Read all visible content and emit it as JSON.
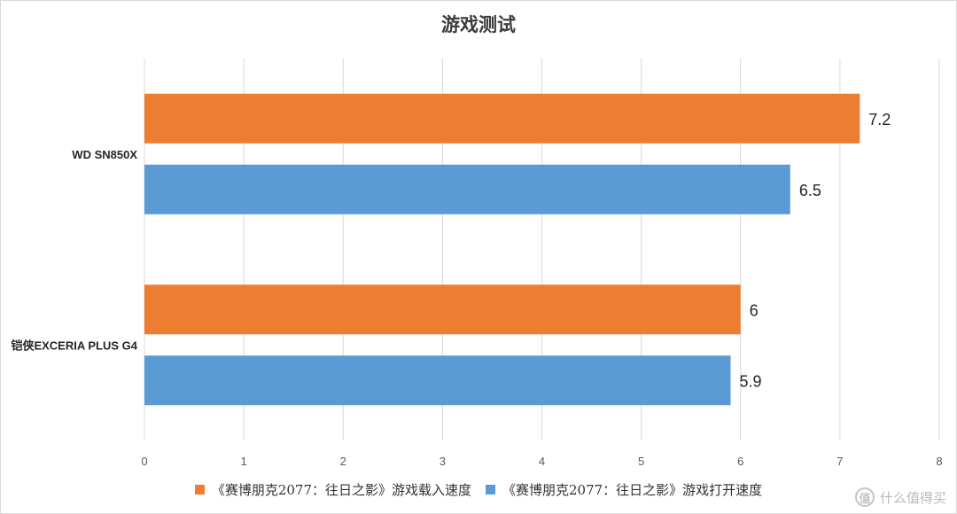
{
  "chart_data": {
    "type": "bar",
    "orientation": "horizontal",
    "title": "游戏测试",
    "categories": [
      "WD SN850X",
      "铠侠EXCERIA PLUS G4"
    ],
    "series": [
      {
        "name": "《赛博朋克2077：往日之影》游戏载入速度",
        "color": "#ED7D31",
        "values": [
          7.2,
          6
        ]
      },
      {
        "name": "《赛博朋克2077：往日之影》游戏打开速度",
        "color": "#5B9BD5",
        "values": [
          6.5,
          5.9
        ]
      }
    ],
    "data_labels": [
      [
        "7.2",
        "6"
      ],
      [
        "6.5",
        "5.9"
      ]
    ],
    "x_ticks": [
      "0",
      "1",
      "2",
      "3",
      "4",
      "5",
      "6",
      "7",
      "8"
    ],
    "xlim": [
      0,
      8
    ],
    "grid": "vertical",
    "legend_position": "bottom"
  },
  "watermark": {
    "icon_glyph": "值",
    "text": "什么值得买"
  }
}
